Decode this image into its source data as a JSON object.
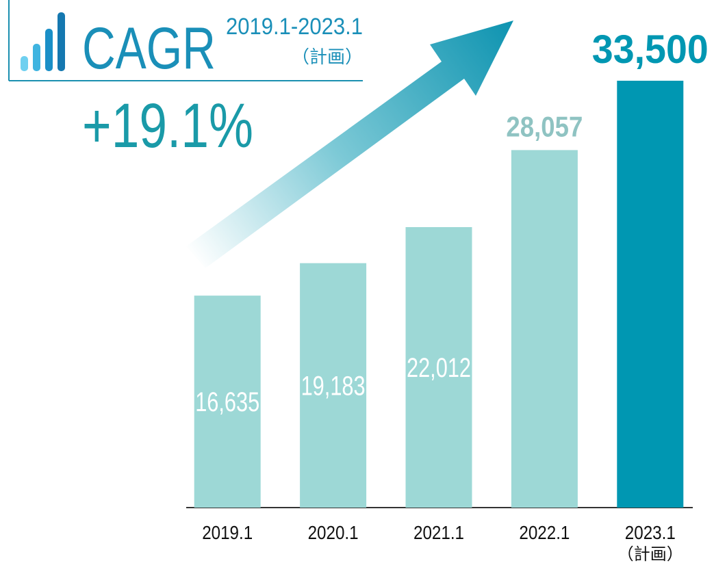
{
  "chart_data": {
    "type": "bar",
    "categories": [
      "2019.1",
      "2020.1",
      "2021.1",
      "2022.1",
      "2023.1"
    ],
    "category_notes": [
      null,
      null,
      null,
      null,
      "（計画）"
    ],
    "values": [
      16635,
      19183,
      22012,
      28057,
      33500
    ],
    "value_labels": [
      "16,635",
      "19,183",
      "22,012",
      "28,057",
      "33,500"
    ],
    "colors": [
      "#9dd8d6",
      "#9dd8d6",
      "#9dd8d6",
      "#9dd8d6",
      "#0097b2"
    ],
    "label_colors": [
      "#ffffff",
      "#ffffff",
      "#ffffff",
      "#8fc3c2",
      "#0097b2"
    ],
    "label_positions": [
      "inside",
      "inside",
      "inside",
      "above",
      "above"
    ],
    "ylim": [
      0,
      33500
    ],
    "cagr": {
      "label": "CAGR",
      "period": "2019.1-2023.1",
      "period_note": "（計画）",
      "value": 19.1,
      "value_label": "+19.1%"
    }
  }
}
